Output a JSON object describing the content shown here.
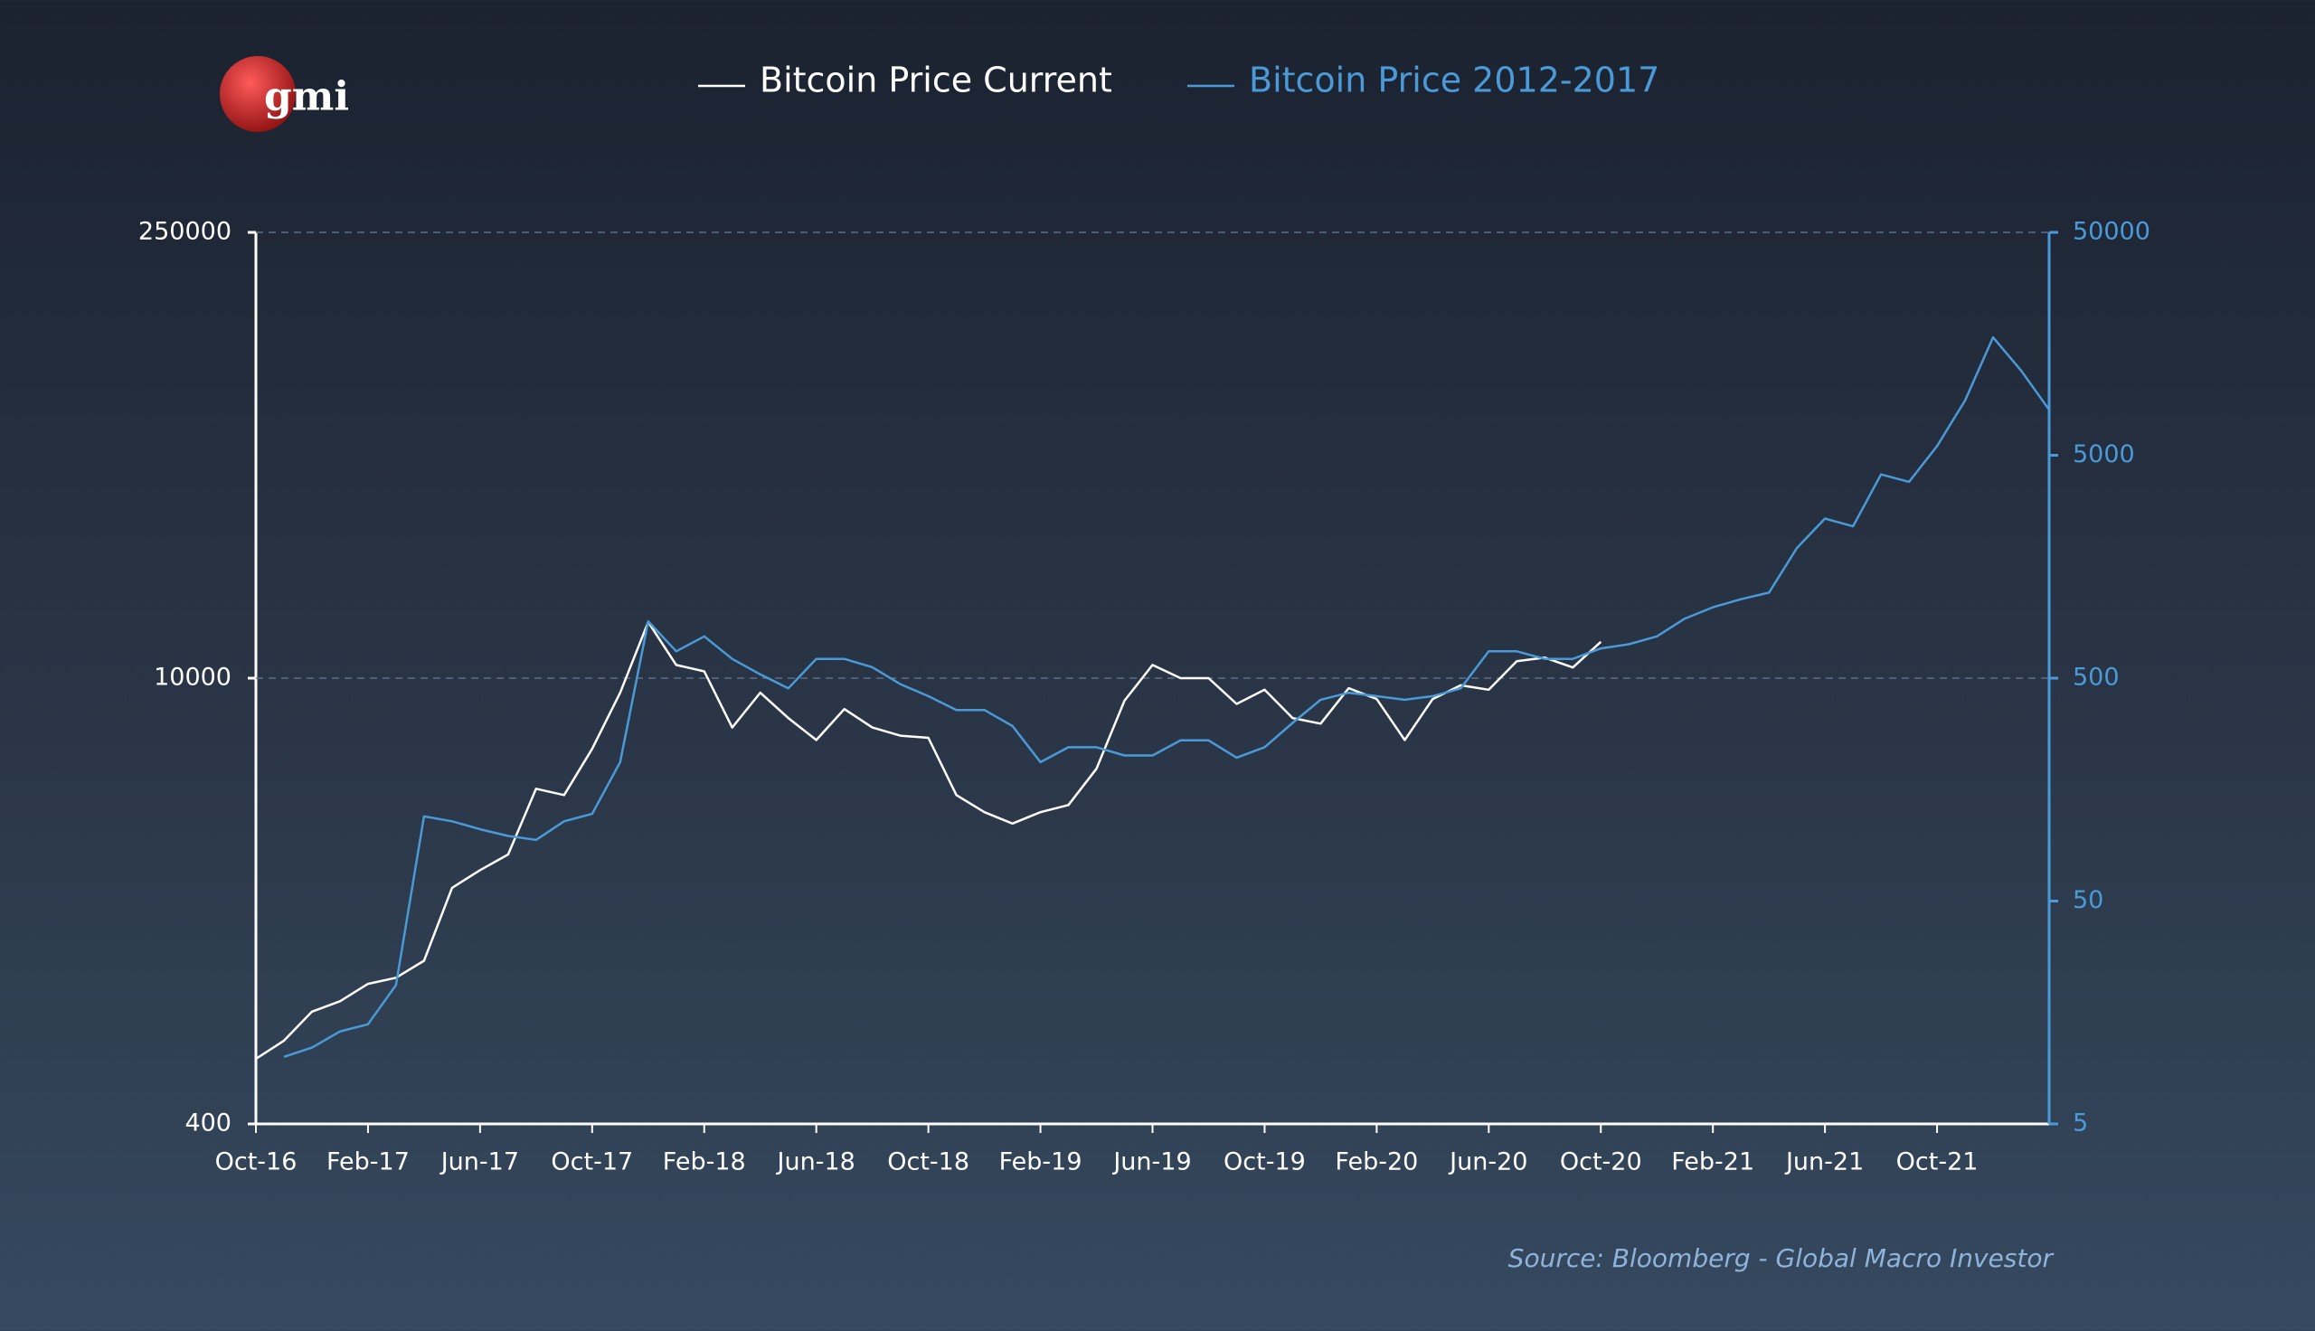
{
  "chart_data": {
    "type": "line",
    "logo": "gmi",
    "source": "Source: Bloomberg - Global Macro Investor",
    "log_scale": true,
    "grid": true,
    "x": [
      "2016-10",
      "2016-11",
      "2016-12",
      "2017-01",
      "2017-02",
      "2017-03",
      "2017-04",
      "2017-05",
      "2017-06",
      "2017-07",
      "2017-08",
      "2017-09",
      "2017-10",
      "2017-11",
      "2017-12",
      "2018-01",
      "2018-02",
      "2018-03",
      "2018-04",
      "2018-05",
      "2018-06",
      "2018-07",
      "2018-08",
      "2018-09",
      "2018-10",
      "2018-11",
      "2018-12",
      "2019-01",
      "2019-02",
      "2019-03",
      "2019-04",
      "2019-05",
      "2019-06",
      "2019-07",
      "2019-08",
      "2019-09",
      "2019-10",
      "2019-11",
      "2019-12",
      "2020-01",
      "2020-02",
      "2020-03",
      "2020-04",
      "2020-05",
      "2020-06",
      "2020-07",
      "2020-08",
      "2020-09",
      "2020-10",
      "2020-11",
      "2020-12",
      "2021-01",
      "2021-02",
      "2021-03",
      "2021-04",
      "2021-05",
      "2021-06",
      "2021-07",
      "2021-08",
      "2021-09",
      "2021-10",
      "2021-11",
      "2021-12",
      "2022-01",
      "2022-02"
    ],
    "xlim": [
      "2016-10",
      "2022-02"
    ],
    "xticks": [
      {
        "value": "2016-10",
        "label": "Oct-16"
      },
      {
        "value": "2017-02",
        "label": "Feb-17"
      },
      {
        "value": "2017-06",
        "label": "Jun-17"
      },
      {
        "value": "2017-10",
        "label": "Oct-17"
      },
      {
        "value": "2018-02",
        "label": "Feb-18"
      },
      {
        "value": "2018-06",
        "label": "Jun-18"
      },
      {
        "value": "2018-10",
        "label": "Oct-18"
      },
      {
        "value": "2019-02",
        "label": "Feb-19"
      },
      {
        "value": "2019-06",
        "label": "Jun-19"
      },
      {
        "value": "2019-10",
        "label": "Oct-19"
      },
      {
        "value": "2020-02",
        "label": "Feb-20"
      },
      {
        "value": "2020-06",
        "label": "Jun-20"
      },
      {
        "value": "2020-10",
        "label": "Oct-20"
      },
      {
        "value": "2021-02",
        "label": "Feb-21"
      },
      {
        "value": "2021-06",
        "label": "Jun-21"
      },
      {
        "value": "2021-10",
        "label": "Oct-21"
      }
    ],
    "ylim": [
      400,
      250000
    ],
    "yticks": [
      400,
      10000,
      250000
    ],
    "y2lim": [
      5,
      50000
    ],
    "y2ticks": [
      5,
      50,
      500,
      5000,
      50000
    ],
    "series": [
      {
        "name": "Bitcoin Price Current",
        "color": "#ffffff",
        "values": [
          640,
          730,
          900,
          970,
          1100,
          1150,
          1300,
          2200,
          2500,
          2800,
          4500,
          4300,
          6000,
          9000,
          15000,
          11000,
          10500,
          7000,
          9000,
          7500,
          6400,
          8000,
          7000,
          6600,
          6500,
          4300,
          3800,
          3500,
          3800,
          4000,
          5200,
          8500,
          11000,
          10000,
          10000,
          8300,
          9200,
          7500,
          7200,
          9300,
          8600,
          6400,
          8600,
          9500,
          9200,
          11300,
          11600,
          10800,
          13000,
          null,
          null,
          null,
          null,
          null,
          null,
          null,
          null,
          null,
          null,
          null,
          null,
          null,
          null,
          null,
          null
        ]
      },
      {
        "name": "Bitcoin Price 2012-2017",
        "color": "#4a9ad8",
        "axis": "y2",
        "values": [
          null,
          10,
          11,
          13,
          14,
          21,
          120,
          114,
          105,
          98,
          94,
          114,
          123,
          210,
          900,
          660,
          770,
          610,
          520,
          450,
          610,
          610,
          560,
          470,
          415,
          360,
          360,
          305,
          210,
          245,
          245,
          225,
          225,
          263,
          263,
          220,
          245,
          315,
          400,
          430,
          415,
          400,
          415,
          450,
          660,
          660,
          610,
          610,
          680,
          710,
          770,
          925,
          1040,
          1130,
          1210,
          1920,
          2600,
          2400,
          4100,
          3800,
          5500,
          8800,
          16900,
          12000,
          8000
        ]
      }
    ]
  }
}
